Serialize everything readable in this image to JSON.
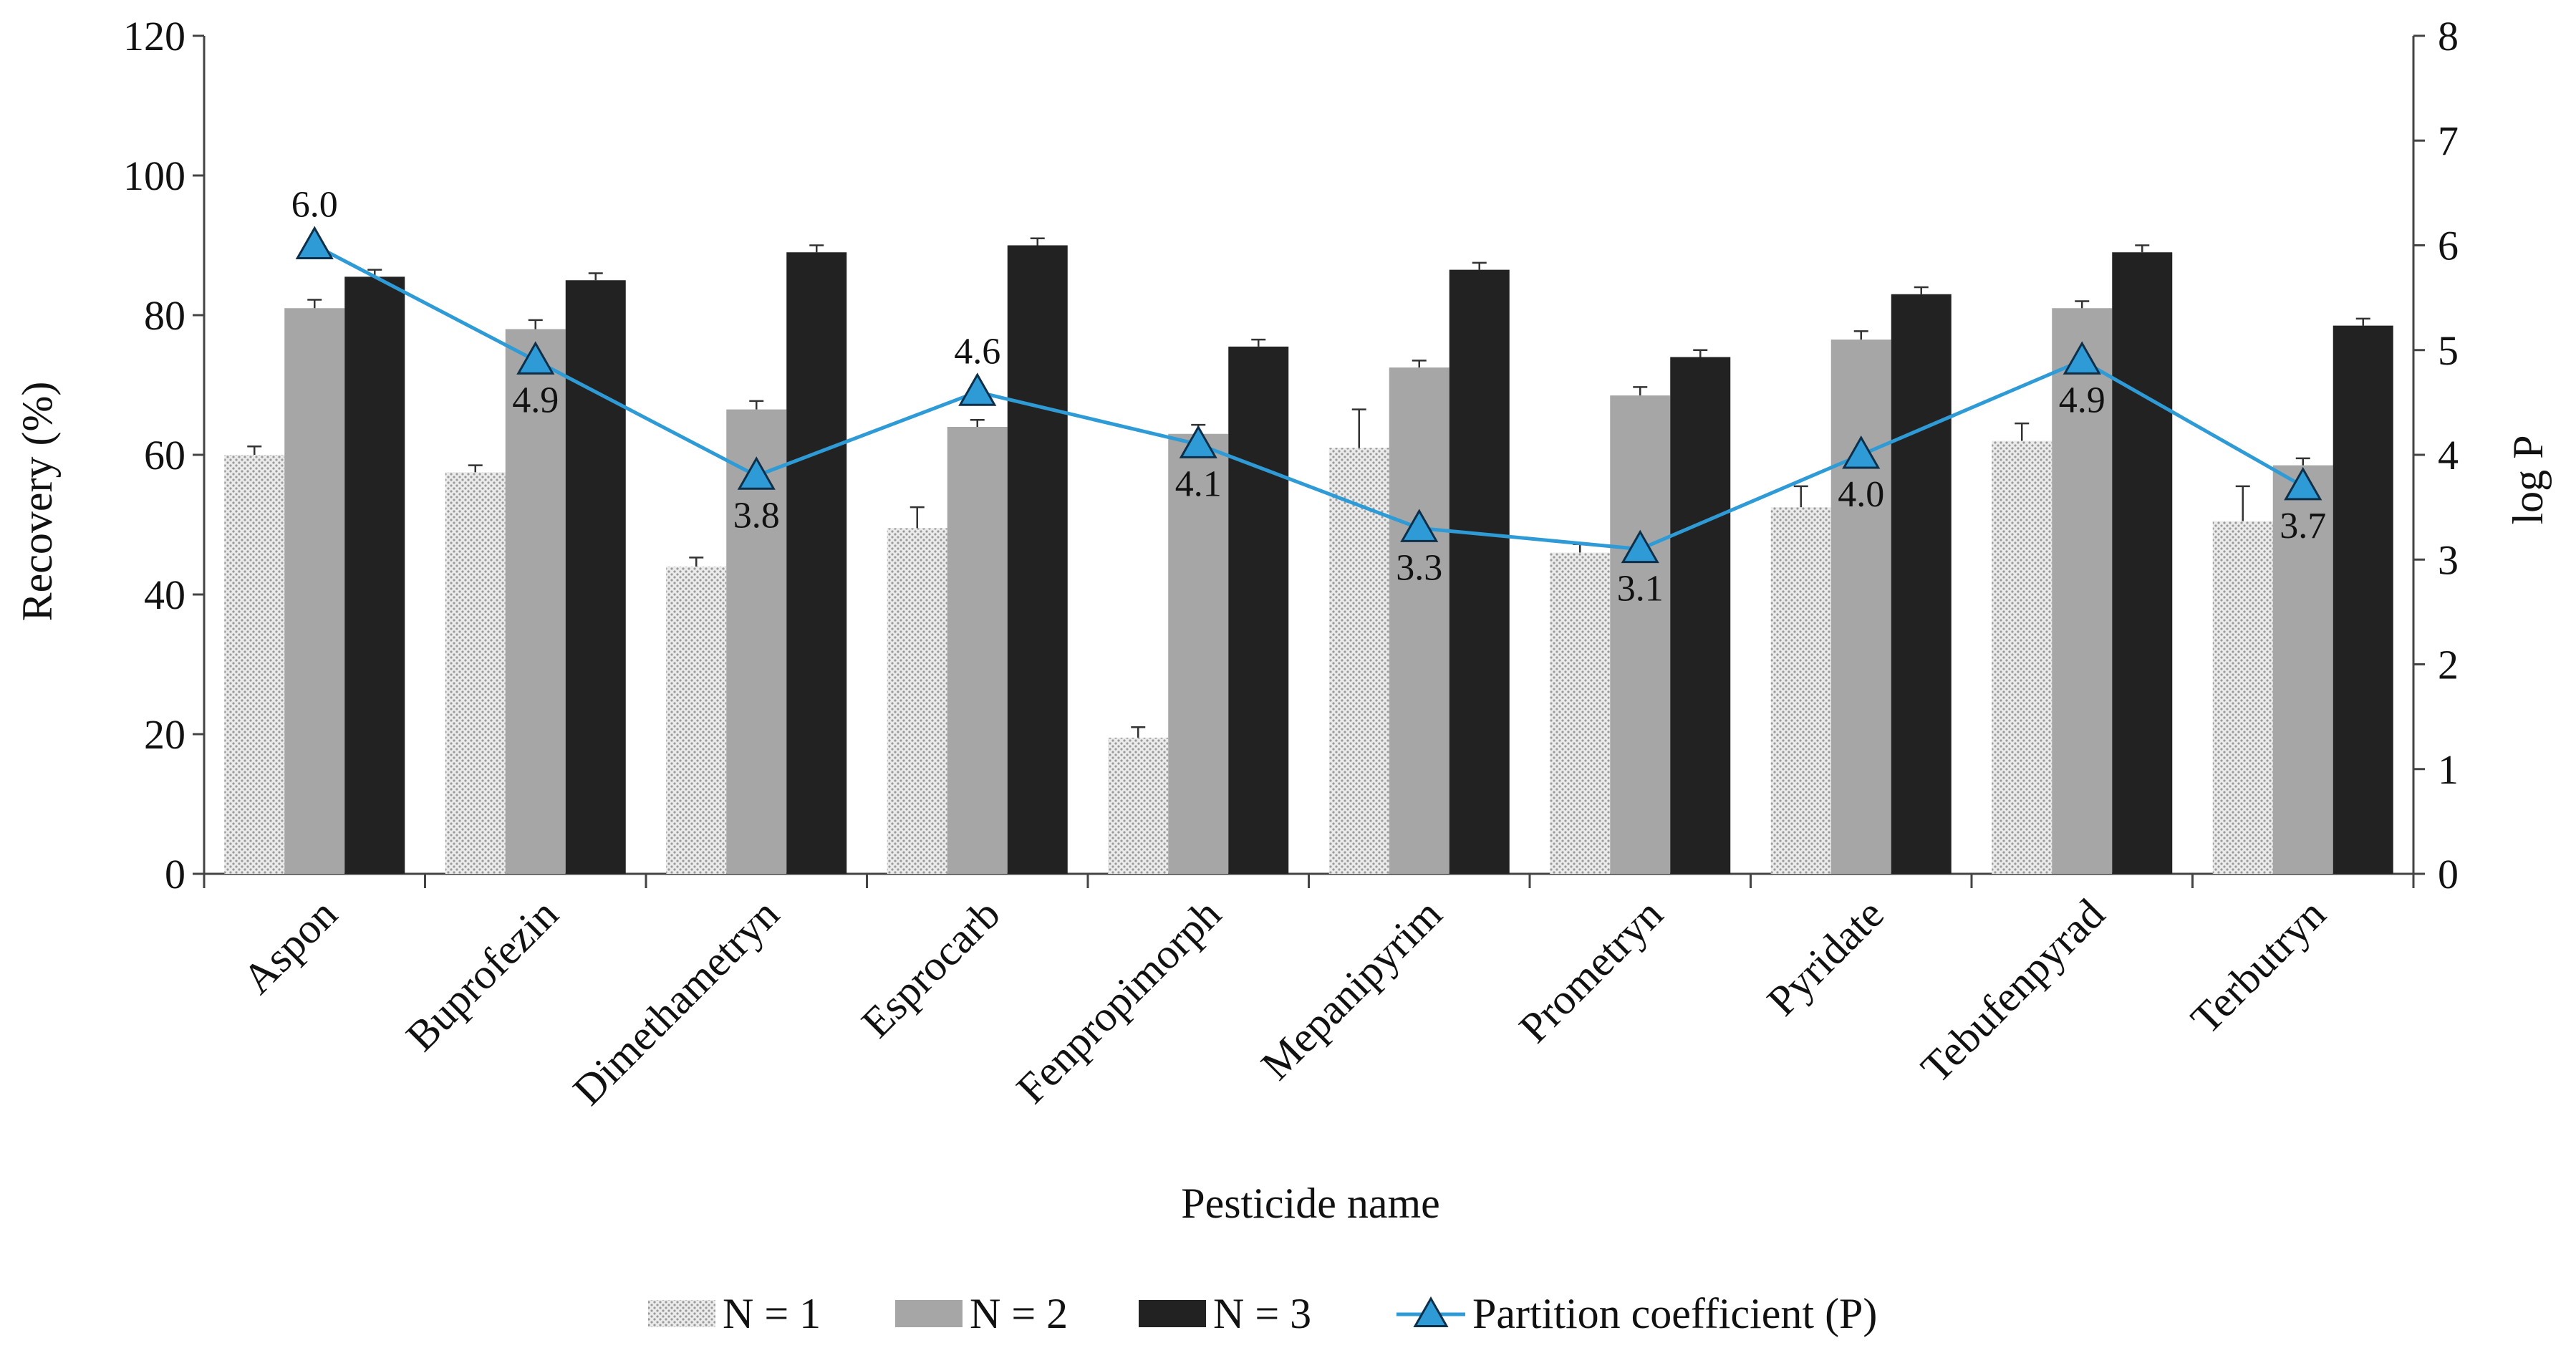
{
  "chart_data": {
    "type": "bar",
    "title": "",
    "xlabel": "Pesticide name",
    "ylabel": "Recovery (%)",
    "y2label": "log P",
    "ylim": [
      0,
      120
    ],
    "y2lim": [
      0,
      8
    ],
    "yticks": [
      "0",
      "20",
      "40",
      "60",
      "80",
      "100",
      "120"
    ],
    "y2ticks": [
      "0",
      "1",
      "2",
      "3",
      "4",
      "5",
      "6",
      "7",
      "8"
    ],
    "categories": [
      "Aspon",
      "Buprofezin",
      "Dimethametryn",
      "Esprocarb",
      "Fenpropimorph",
      "Mepanipyrim",
      "Prometryn",
      "Pyridate",
      "Tebufenpyrad",
      "Terbutryn"
    ],
    "series": [
      {
        "name": "N = 1",
        "kind": "bar",
        "color": "#d9d9d9",
        "pattern": "dotted",
        "values": [
          60,
          57.5,
          44,
          49.5,
          19.5,
          61,
          46,
          52.5,
          62,
          50.5
        ],
        "errors": [
          1.2,
          1.0,
          1.3,
          3.0,
          1.5,
          5.5,
          1.2,
          3.0,
          2.5,
          5.0
        ]
      },
      {
        "name": "N = 2",
        "kind": "bar",
        "color": "#a6a6a6",
        "values": [
          81,
          78,
          66.5,
          64,
          63,
          72.5,
          68.5,
          76.5,
          81,
          58.5
        ],
        "errors": [
          1.2,
          1.3,
          1.2,
          1.0,
          1.3,
          1.0,
          1.2,
          1.2,
          1.0,
          1.0
        ]
      },
      {
        "name": "N = 3",
        "kind": "bar",
        "color": "#222222",
        "values": [
          85.5,
          85,
          89,
          90,
          75.5,
          86.5,
          74,
          83,
          89,
          78.5
        ],
        "errors": [
          1.0,
          1.0,
          1.0,
          1.0,
          1.0,
          1.0,
          1.0,
          1.0,
          1.0,
          1.0
        ]
      },
      {
        "name": "Partition coefficient (P)",
        "kind": "line",
        "axis": "y2",
        "color": "#2e9bd6",
        "marker": "triangle",
        "values": [
          6.0,
          4.9,
          3.8,
          4.6,
          4.1,
          3.3,
          3.1,
          4.0,
          4.9,
          3.7
        ],
        "labels": [
          "6.0",
          "4.9",
          "3.8",
          "4.6",
          "4.1",
          "3.3",
          "3.1",
          "4.0",
          "4.9",
          "3.7"
        ],
        "label_positions": [
          "above",
          "below",
          "below",
          "above",
          "below",
          "below",
          "below",
          "below",
          "below",
          "below"
        ]
      }
    ],
    "legend_position": "bottom"
  }
}
